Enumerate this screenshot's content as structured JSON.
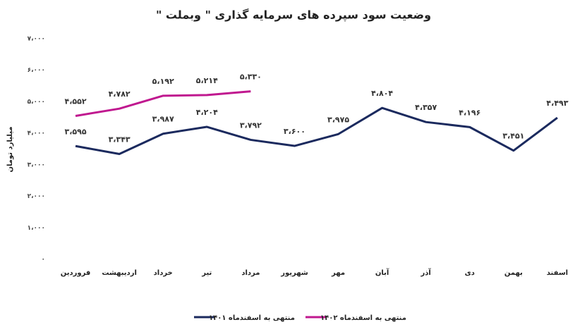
{
  "chart_data": {
    "type": "line",
    "title": "وضعیت سود سپرده های سرمایه گذاری \" وبملت \"",
    "y_label": "میلیارد تومان",
    "categories": [
      "فروردین",
      "اردیبهشت",
      "خرداد",
      "تیر",
      "مرداد",
      "شهریور",
      "مهر",
      "آبان",
      "آذر",
      "دی",
      "بهمن",
      "اسفند"
    ],
    "series": [
      {
        "name": "منتهی به اسفندماه ۱۴۰۱",
        "color": "#1b2a5e",
        "values": [
          3595,
          3343,
          3987,
          4204,
          3792,
          3600,
          3975,
          4804,
          4357,
          4196,
          3451,
          4493
        ],
        "value_labels": [
          "۳،۵۹۵",
          "۳،۳۴۳",
          "۳،۹۸۷",
          "۴،۲۰۴",
          "۳،۷۹۲",
          "۳،۶۰۰",
          "۳،۹۷۵",
          "۴،۸۰۴",
          "۴،۳۵۷",
          "۴،۱۹۶",
          "۳،۴۵۱",
          "۴،۴۹۳"
        ]
      },
      {
        "name": "منتهی به اسفندماه ۱۴۰۲",
        "color": "#c0188f",
        "values": [
          4552,
          4782,
          5192,
          5214,
          5330,
          null,
          null,
          null,
          null,
          null,
          null,
          null
        ],
        "value_labels": [
          "۴،۵۵۲",
          "۴،۷۸۲",
          "۵،۱۹۲",
          "۵،۲۱۴",
          "۵،۳۳۰",
          null,
          null,
          null,
          null,
          null,
          null,
          null
        ]
      }
    ],
    "ylim": [
      0,
      7000
    ],
    "yticks": [
      {
        "value": 0,
        "label": "۰"
      },
      {
        "value": 1000,
        "label": "۱،۰۰۰"
      },
      {
        "value": 2000,
        "label": "۲،۰۰۰"
      },
      {
        "value": 3000,
        "label": "۳،۰۰۰"
      },
      {
        "value": 4000,
        "label": "۴،۰۰۰"
      },
      {
        "value": 5000,
        "label": "۵،۰۰۰"
      },
      {
        "value": 6000,
        "label": "۶،۰۰۰"
      },
      {
        "value": 7000,
        "label": "۷،۰۰۰"
      }
    ],
    "grid": false
  }
}
